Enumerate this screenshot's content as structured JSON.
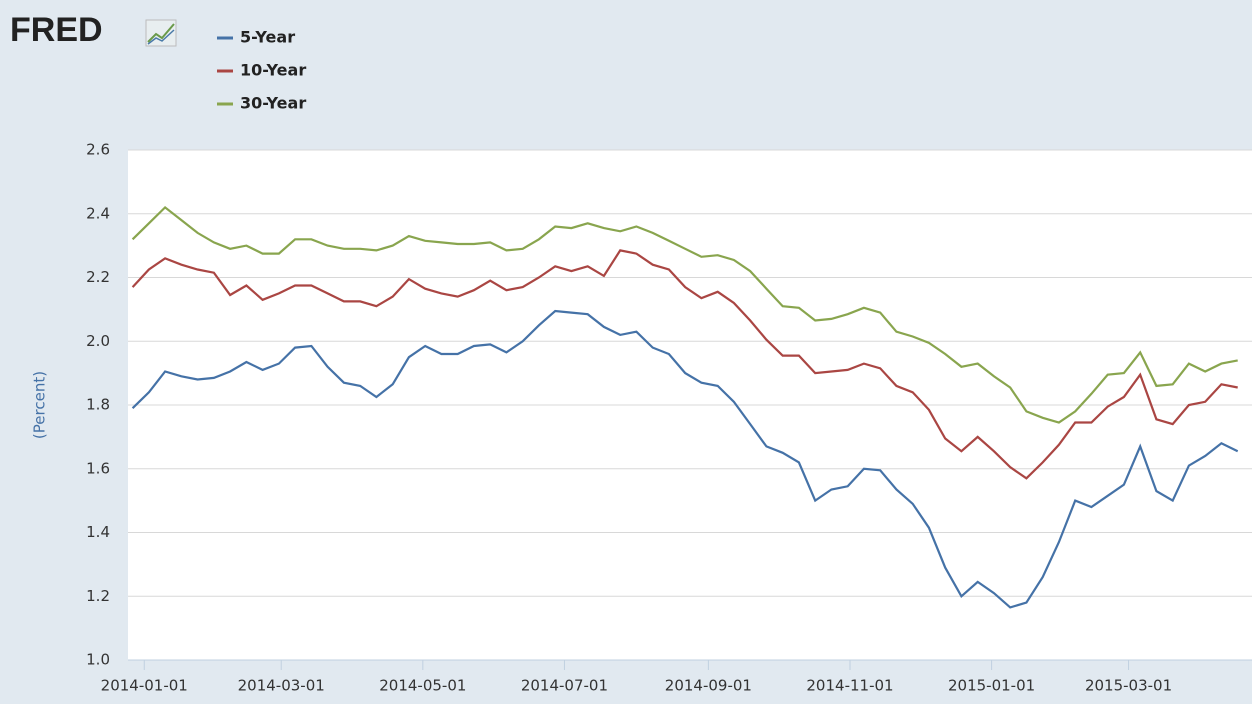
{
  "logo": "FRED",
  "chart_data": {
    "type": "line",
    "y_label": "(Percent)",
    "x": [
      "2013-12-27",
      "2014-01-03",
      "2014-01-10",
      "2014-01-17",
      "2014-01-24",
      "2014-01-31",
      "2014-02-07",
      "2014-02-14",
      "2014-02-21",
      "2014-02-28",
      "2014-03-07",
      "2014-03-14",
      "2014-03-21",
      "2014-03-28",
      "2014-04-04",
      "2014-04-11",
      "2014-04-18",
      "2014-04-25",
      "2014-05-02",
      "2014-05-09",
      "2014-05-16",
      "2014-05-23",
      "2014-05-30",
      "2014-06-06",
      "2014-06-13",
      "2014-06-20",
      "2014-06-27",
      "2014-07-04",
      "2014-07-11",
      "2014-07-18",
      "2014-07-25",
      "2014-08-01",
      "2014-08-08",
      "2014-08-15",
      "2014-08-22",
      "2014-08-29",
      "2014-09-05",
      "2014-09-12",
      "2014-09-19",
      "2014-09-26",
      "2014-10-03",
      "2014-10-10",
      "2014-10-17",
      "2014-10-24",
      "2014-10-31",
      "2014-11-07",
      "2014-11-14",
      "2014-11-21",
      "2014-11-28",
      "2014-12-05",
      "2014-12-12",
      "2014-12-19",
      "2014-12-26",
      "2015-01-02",
      "2015-01-09",
      "2015-01-16",
      "2015-01-23",
      "2015-01-30",
      "2015-02-06",
      "2015-02-13",
      "2015-02-20",
      "2015-02-27",
      "2015-03-06",
      "2015-03-13",
      "2015-03-20",
      "2015-03-27",
      "2015-04-03",
      "2015-04-10",
      "2015-04-17"
    ],
    "series": [
      {
        "name": "5-Year",
        "color": "#4572a7",
        "values": [
          1.79,
          1.84,
          1.905,
          1.89,
          1.88,
          1.885,
          1.905,
          1.935,
          1.91,
          1.93,
          1.98,
          1.985,
          1.92,
          1.87,
          1.86,
          1.825,
          1.865,
          1.95,
          1.985,
          1.96,
          1.96,
          1.985,
          1.99,
          1.965,
          2.0,
          2.05,
          2.095,
          2.09,
          2.085,
          2.045,
          2.02,
          2.03,
          1.98,
          1.96,
          1.9,
          1.87,
          1.86,
          1.81,
          1.74,
          1.67,
          1.65,
          1.62,
          1.5,
          1.535,
          1.545,
          1.6,
          1.595,
          1.535,
          1.49,
          1.415,
          1.29,
          1.2,
          1.245,
          1.21,
          1.165,
          1.18,
          1.26,
          1.37,
          1.5,
          1.48,
          1.515,
          1.55,
          1.67,
          1.53,
          1.5,
          1.61,
          1.64,
          1.68,
          1.655
        ]
      },
      {
        "name": "10-Year",
        "color": "#aa4643",
        "values": [
          2.17,
          2.225,
          2.26,
          2.24,
          2.225,
          2.215,
          2.145,
          2.175,
          2.13,
          2.15,
          2.175,
          2.175,
          2.15,
          2.125,
          2.125,
          2.11,
          2.14,
          2.195,
          2.165,
          2.15,
          2.14,
          2.16,
          2.19,
          2.16,
          2.17,
          2.2,
          2.235,
          2.22,
          2.235,
          2.205,
          2.285,
          2.275,
          2.24,
          2.225,
          2.17,
          2.135,
          2.155,
          2.12,
          2.065,
          2.005,
          1.955,
          1.955,
          1.9,
          1.905,
          1.91,
          1.93,
          1.915,
          1.86,
          1.84,
          1.785,
          1.695,
          1.655,
          1.7,
          1.655,
          1.605,
          1.57,
          1.62,
          1.675,
          1.745,
          1.745,
          1.795,
          1.825,
          1.895,
          1.755,
          1.74,
          1.8,
          1.81,
          1.865,
          1.855
        ]
      },
      {
        "name": "30-Year",
        "color": "#89a54e",
        "values": [
          2.32,
          2.37,
          2.42,
          2.38,
          2.34,
          2.31,
          2.29,
          2.3,
          2.275,
          2.275,
          2.32,
          2.32,
          2.3,
          2.29,
          2.29,
          2.285,
          2.3,
          2.33,
          2.315,
          2.31,
          2.305,
          2.305,
          2.31,
          2.285,
          2.29,
          2.32,
          2.36,
          2.355,
          2.37,
          2.355,
          2.345,
          2.36,
          2.34,
          2.315,
          2.29,
          2.265,
          2.27,
          2.255,
          2.22,
          2.165,
          2.11,
          2.105,
          2.065,
          2.07,
          2.085,
          2.105,
          2.09,
          2.03,
          2.015,
          1.995,
          1.96,
          1.92,
          1.93,
          1.89,
          1.855,
          1.78,
          1.76,
          1.745,
          1.78,
          1.835,
          1.895,
          1.9,
          1.965,
          1.86,
          1.865,
          1.93,
          1.905,
          1.93,
          1.94
        ]
      }
    ],
    "xlim": [
      "2013-12-25",
      "2015-04-18"
    ],
    "xticks": [
      "2014-01-01",
      "2014-03-01",
      "2014-05-01",
      "2014-07-01",
      "2014-09-01",
      "2014-11-01",
      "2015-01-01",
      "2015-03-01"
    ],
    "ylim": [
      1.0,
      2.6
    ],
    "yticks": [
      {
        "value": 1.0,
        "label": "1.0"
      },
      1.2,
      1.4,
      1.6,
      1.8,
      {
        "value": 2.0,
        "label": "2.0"
      },
      2.2,
      2.4,
      2.6
    ],
    "grid": true,
    "legend": "top-left"
  }
}
